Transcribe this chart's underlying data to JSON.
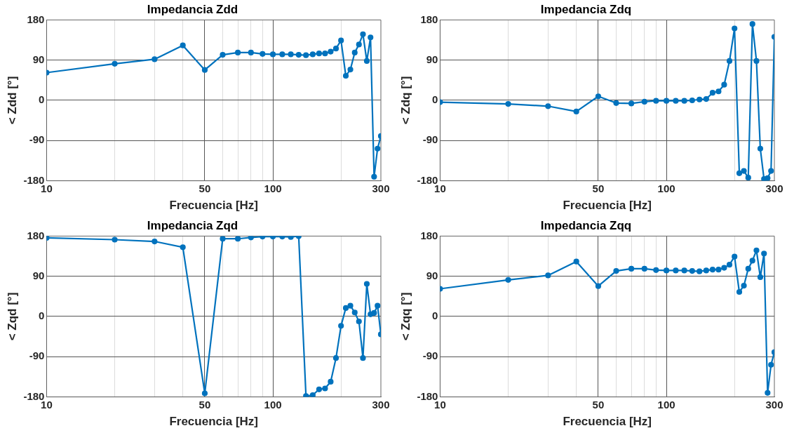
{
  "chart_data": [
    {
      "type": "line",
      "title": "Impedancia Zdd",
      "xlabel": "Frecuencia [Hz]",
      "ylabel": "< Zdd [°]",
      "log": "x",
      "grid": true,
      "marker": "circle",
      "line_style": "solid",
      "x": [
        10,
        20,
        30,
        40,
        50,
        60,
        70,
        80,
        90,
        100,
        110,
        120,
        130,
        140,
        150,
        160,
        170,
        180,
        190,
        200,
        210,
        220,
        230,
        240,
        250,
        260,
        270,
        280,
        290,
        300
      ],
      "xlim": [
        10,
        300
      ],
      "xticks": [
        10,
        {
          "value": 20,
          "label": null
        },
        {
          "value": 30,
          "label": null
        },
        {
          "value": 40,
          "label": null
        },
        50,
        {
          "value": 60,
          "label": null
        },
        {
          "value": 70,
          "label": null
        },
        {
          "value": 80,
          "label": null
        },
        {
          "value": 90,
          "label": null
        },
        100,
        {
          "value": 200,
          "label": null
        },
        300
      ],
      "ylim": [
        -180,
        180
      ],
      "yticks": [
        -180,
        -90,
        0,
        90,
        180
      ],
      "series": [
        {
          "color": "#0072bd",
          "values": [
            62,
            82,
            92,
            123,
            68,
            102,
            107,
            107,
            104,
            103,
            103,
            103,
            102,
            101,
            103,
            105,
            105,
            109,
            116,
            134,
            55,
            69,
            107,
            125,
            148,
            88,
            141,
            -171,
            -108,
            -80
          ]
        }
      ]
    },
    {
      "type": "line",
      "title": "Impedancia Zdq",
      "xlabel": "Frecuencia [Hz]",
      "ylabel": "< Zdq [°]",
      "log": "x",
      "grid": true,
      "marker": "circle",
      "line_style": "solid",
      "x": [
        10,
        20,
        30,
        40,
        50,
        60,
        70,
        80,
        90,
        100,
        110,
        120,
        130,
        140,
        150,
        160,
        170,
        180,
        190,
        200,
        210,
        220,
        230,
        240,
        250,
        260,
        270,
        280,
        290,
        300
      ],
      "xlim": [
        10,
        300
      ],
      "xticks": [
        10,
        {
          "value": 20,
          "label": null
        },
        {
          "value": 30,
          "label": null
        },
        {
          "value": 40,
          "label": null
        },
        50,
        {
          "value": 60,
          "label": null
        },
        {
          "value": 70,
          "label": null
        },
        {
          "value": 80,
          "label": null
        },
        {
          "value": 90,
          "label": null
        },
        100,
        {
          "value": 200,
          "label": null
        },
        300
      ],
      "ylim": [
        -180,
        180
      ],
      "yticks": [
        -180,
        -90,
        0,
        90,
        180
      ],
      "series": [
        {
          "color": "#0072bd",
          "values": [
            -4,
            -8,
            -13,
            -25,
            9,
            -6,
            -7,
            -3,
            -1,
            -1,
            -1,
            -1,
            0,
            2,
            3,
            17,
            20,
            35,
            88,
            161,
            -163,
            -158,
            -173,
            171,
            88,
            -108,
            -176,
            -174,
            -158,
            142
          ]
        }
      ]
    },
    {
      "type": "line",
      "title": "Impedancia Zqd",
      "xlabel": "Frecuencia [Hz]",
      "ylabel": "< Zqd [°]",
      "log": "x",
      "grid": true,
      "marker": "circle",
      "line_style": "solid",
      "x": [
        10,
        20,
        30,
        40,
        50,
        60,
        70,
        80,
        90,
        100,
        110,
        120,
        130,
        140,
        150,
        160,
        170,
        180,
        190,
        200,
        210,
        220,
        230,
        240,
        250,
        260,
        270,
        280,
        290,
        300
      ],
      "xlim": [
        10,
        300
      ],
      "xticks": [
        10,
        {
          "value": 20,
          "label": null
        },
        {
          "value": 30,
          "label": null
        },
        {
          "value": 40,
          "label": null
        },
        50,
        {
          "value": 60,
          "label": null
        },
        {
          "value": 70,
          "label": null
        },
        {
          "value": 80,
          "label": null
        },
        {
          "value": 90,
          "label": null
        },
        100,
        {
          "value": 200,
          "label": null
        },
        300
      ],
      "ylim": [
        -180,
        180
      ],
      "yticks": [
        -180,
        -90,
        0,
        90,
        180
      ],
      "series": [
        {
          "color": "#0072bd",
          "values": [
            176,
            172,
            168,
            155,
            -172,
            174,
            174,
            177,
            179,
            179,
            179,
            178,
            180,
            -178,
            -176,
            -163,
            -161,
            -146,
            -93,
            -21,
            19,
            24,
            9,
            -11,
            -93,
            73,
            5,
            8,
            24,
            -40
          ]
        }
      ]
    },
    {
      "type": "line",
      "title": "Impedancia Zqq",
      "xlabel": "Frecuencia [Hz]",
      "ylabel": "< Zqq [°]",
      "log": "x",
      "grid": true,
      "marker": "circle",
      "line_style": "solid",
      "x": [
        10,
        20,
        30,
        40,
        50,
        60,
        70,
        80,
        90,
        100,
        110,
        120,
        130,
        140,
        150,
        160,
        170,
        180,
        190,
        200,
        210,
        220,
        230,
        240,
        250,
        260,
        270,
        280,
        290,
        300
      ],
      "xlim": [
        10,
        300
      ],
      "xticks": [
        10,
        {
          "value": 20,
          "label": null
        },
        {
          "value": 30,
          "label": null
        },
        {
          "value": 40,
          "label": null
        },
        50,
        {
          "value": 60,
          "label": null
        },
        {
          "value": 70,
          "label": null
        },
        {
          "value": 80,
          "label": null
        },
        {
          "value": 90,
          "label": null
        },
        100,
        {
          "value": 200,
          "label": null
        },
        300
      ],
      "ylim": [
        -180,
        180
      ],
      "yticks": [
        -180,
        -90,
        0,
        90,
        180
      ],
      "series": [
        {
          "color": "#0072bd",
          "values": [
            62,
            82,
            92,
            123,
            68,
            102,
            107,
            107,
            104,
            103,
            103,
            103,
            102,
            101,
            103,
            105,
            105,
            109,
            116,
            134,
            55,
            69,
            107,
            125,
            148,
            88,
            141,
            -171,
            -108,
            -80
          ]
        }
      ]
    }
  ]
}
